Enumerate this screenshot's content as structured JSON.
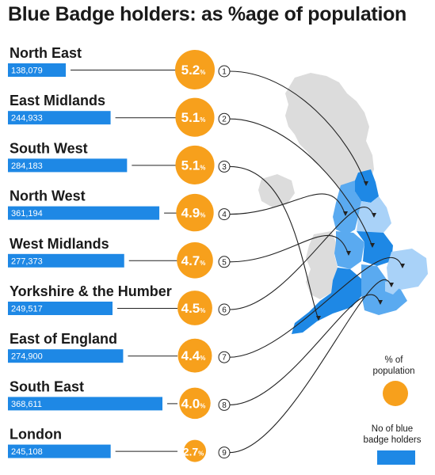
{
  "chart_data": {
    "type": "bar",
    "title": "Blue Badge holders: as %age of population",
    "categories": [
      "North East",
      "East Midlands",
      "South West",
      "North West",
      "West Midlands",
      "Yorkshire & the Humber",
      "East of England",
      "South East",
      "London"
    ],
    "series": [
      {
        "name": "No of blue badge holders",
        "values": [
          138079,
          244933,
          284183,
          361194,
          277373,
          249517,
          274900,
          368611,
          245108
        ],
        "labels": [
          "138,079",
          "244,933",
          "284,183",
          "361,194",
          "277,373",
          "249,517",
          "274,900",
          "368,611",
          "245,108"
        ]
      },
      {
        "name": "% of population",
        "values": [
          5.2,
          5.1,
          5.1,
          4.9,
          4.7,
          4.5,
          4.4,
          4.0,
          2.7
        ],
        "labels": [
          "5.2",
          "5.1",
          "5.1",
          "4.9",
          "4.7",
          "4.5",
          "4.4",
          "4.0",
          "2.7"
        ]
      }
    ],
    "ranks": [
      "1",
      "2",
      "3",
      "4",
      "5",
      "6",
      "7",
      "8",
      "9"
    ],
    "pct_unit": "%",
    "legend": {
      "pct_label_1": "% of",
      "pct_label_2": "population",
      "bar_label_1": "No of blue",
      "bar_label_2": "badge holders",
      "position": "bottom-right"
    },
    "colors": {
      "bar": "#1e88e5",
      "circle": "#f7a01c",
      "map_grey": "#dcdcdc",
      "map_dark": "#1e88e5",
      "map_mid": "#5aaaf0",
      "map_light": "#a9d2f8"
    }
  }
}
